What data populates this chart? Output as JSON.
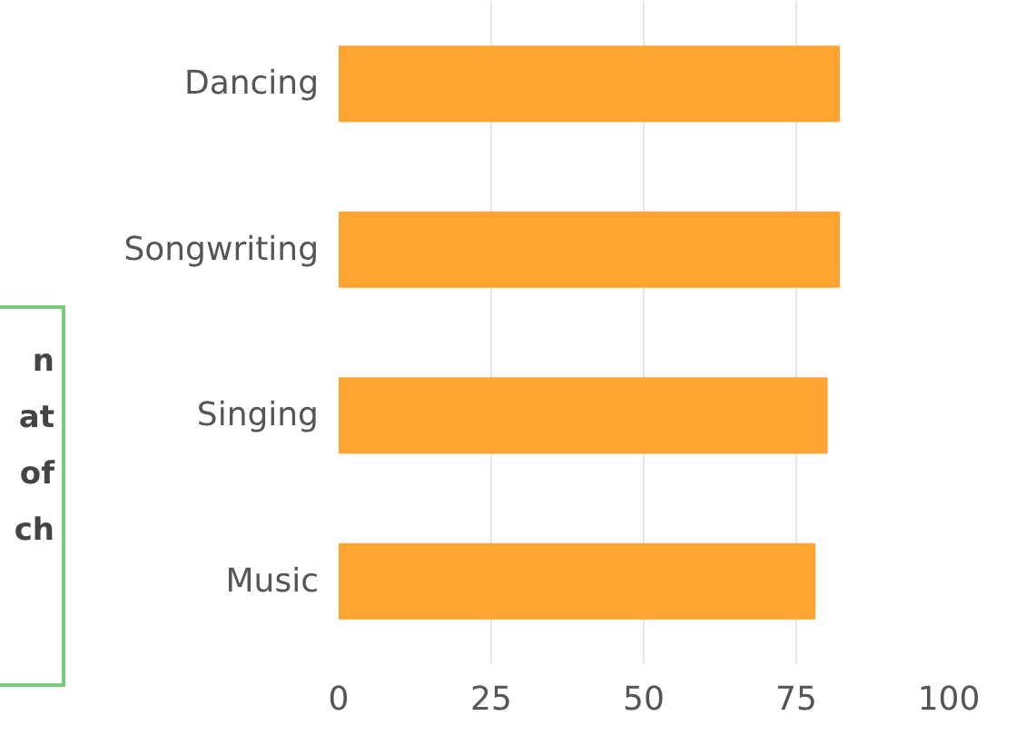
{
  "chart_data": {
    "type": "bar",
    "orientation": "horizontal",
    "categories": [
      "Dancing",
      "Songwriting",
      "Singing",
      "Music"
    ],
    "values": [
      82,
      82,
      80,
      78
    ],
    "color": "#ffa331",
    "xlim": [
      0,
      100
    ],
    "xticks": [
      0,
      25,
      50,
      75,
      100
    ],
    "grid": "x",
    "annotations": [
      "n",
      "at",
      "of",
      "ch"
    ]
  }
}
